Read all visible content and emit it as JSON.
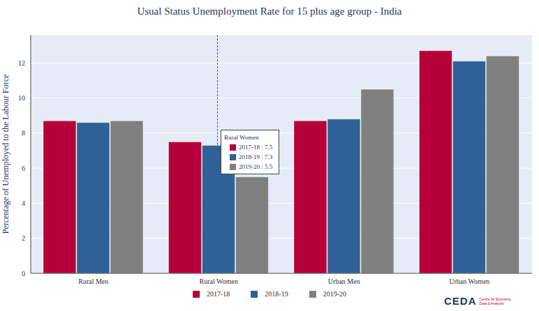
{
  "chart_data": {
    "type": "bar",
    "title": "Usual Status Unemployment Rate for 15 plus age group - India",
    "y_label": "Percentage of Unemployed to the Labour Force",
    "categories": [
      "Rural Men",
      "Rural Women",
      "Urban Men",
      "Urban Women"
    ],
    "series": [
      {
        "name": "2017-18",
        "color": "#b5003a",
        "values": [
          8.7,
          7.5,
          8.7,
          12.7
        ]
      },
      {
        "name": "2018-19",
        "color": "#2f6196",
        "values": [
          8.6,
          7.3,
          8.8,
          12.1
        ]
      },
      {
        "name": "2019-20",
        "color": "#808080",
        "values": [
          8.7,
          5.5,
          10.5,
          12.4
        ]
      }
    ],
    "ylim": [
      0,
      13.6
    ],
    "yticks": [
      0,
      2,
      4,
      6,
      8,
      10,
      12
    ],
    "grid": true,
    "legend": "bottom",
    "annotation": {
      "title": "Rural Women",
      "lines": [
        "2017-18 : 7.5",
        "2018-19 : 7.3",
        "2019-20 : 5.5"
      ]
    },
    "logo": "CEDA",
    "logo_subtitle": "Centre for Economic Data & Analysis"
  }
}
